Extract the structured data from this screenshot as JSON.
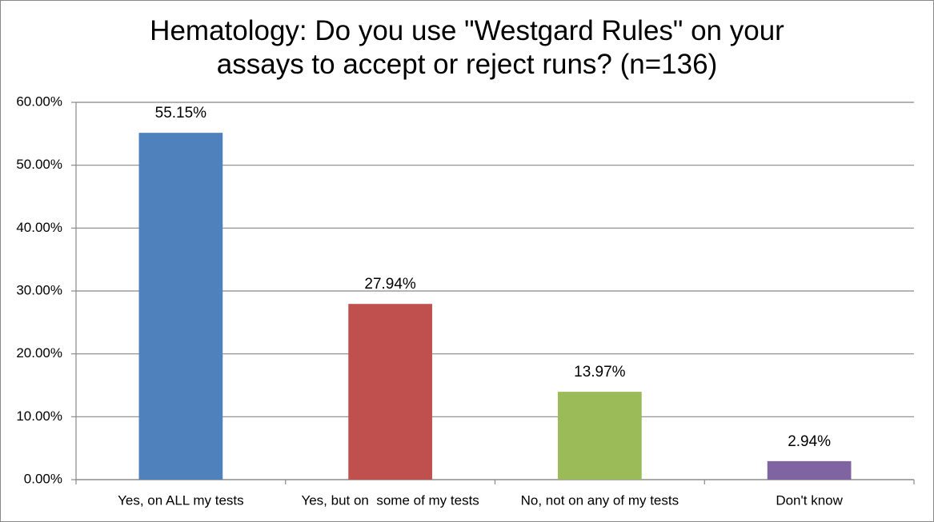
{
  "chart_data": {
    "type": "bar",
    "title": "Hematology: Do you use \"Westgard Rules\" on your assays to accept or reject runs? (n=136)",
    "categories": [
      "Yes, on ALL my tests",
      "Yes, but on  some of my tests",
      "No, not on any of my tests",
      "Don't know"
    ],
    "values": [
      55.15,
      27.94,
      13.97,
      2.94
    ],
    "value_labels": [
      "55.15%",
      "27.94%",
      "13.97%",
      "2.94%"
    ],
    "colors": [
      "#4f81bd",
      "#c0504d",
      "#9bbb59",
      "#8064a2"
    ],
    "ylim": [
      0,
      60
    ],
    "yticks": [
      {
        "value": 0,
        "label": "0.00%"
      },
      {
        "value": 10,
        "label": "10.00%"
      },
      {
        "value": 20,
        "label": "20.00%"
      },
      {
        "value": 30,
        "label": "30.00%"
      },
      {
        "value": 40,
        "label": "40.00%"
      },
      {
        "value": 50,
        "label": "50.00%"
      },
      {
        "value": 60,
        "label": "60.00%"
      }
    ],
    "grid": true
  }
}
